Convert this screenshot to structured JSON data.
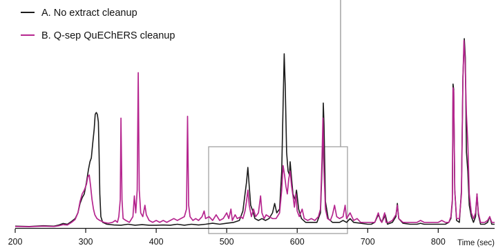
{
  "chart_data": {
    "type": "line",
    "title": "",
    "xlabel": "Time (sec)",
    "ylabel": "",
    "xlim": [
      200,
      880
    ],
    "ylim": [
      0,
      100
    ],
    "x_ticks": [
      "200",
      "300",
      "400",
      "500",
      "600",
      "700",
      "800"
    ],
    "grid": false,
    "legend_position": "top-left",
    "series": [
      {
        "name": "A. No extract cleanup",
        "color": "#1a1a1a",
        "points": [
          [
            200,
            1
          ],
          [
            220,
            0.8
          ],
          [
            240,
            1.2
          ],
          [
            255,
            1
          ],
          [
            262,
            1.6
          ],
          [
            268,
            2.4
          ],
          [
            274,
            2
          ],
          [
            280,
            3.5
          ],
          [
            285,
            5
          ],
          [
            289,
            8
          ],
          [
            292,
            13
          ],
          [
            295,
            16
          ],
          [
            298,
            18
          ],
          [
            301,
            24
          ],
          [
            304,
            31
          ],
          [
            306,
            35
          ],
          [
            308,
            37
          ],
          [
            310,
            45
          ],
          [
            312,
            52
          ],
          [
            313.5,
            60
          ],
          [
            315,
            61
          ],
          [
            316.5,
            60
          ],
          [
            318,
            56
          ],
          [
            319,
            40
          ],
          [
            320,
            18
          ],
          [
            321.5,
            6
          ],
          [
            324,
            3
          ],
          [
            330,
            2
          ],
          [
            340,
            1.6
          ],
          [
            350,
            1.5
          ],
          [
            360,
            2
          ],
          [
            370,
            1.5
          ],
          [
            380,
            1.8
          ],
          [
            390,
            1.5
          ],
          [
            400,
            1.5
          ],
          [
            410,
            1.6
          ],
          [
            420,
            1.5
          ],
          [
            430,
            2
          ],
          [
            440,
            1.5
          ],
          [
            450,
            2
          ],
          [
            460,
            1.6
          ],
          [
            470,
            2
          ],
          [
            480,
            2.5
          ],
          [
            490,
            2
          ],
          [
            500,
            2.5
          ],
          [
            510,
            3
          ],
          [
            518,
            4
          ],
          [
            523,
            9
          ],
          [
            526,
            18
          ],
          [
            528,
            24
          ],
          [
            530,
            32
          ],
          [
            532,
            22
          ],
          [
            534,
            12
          ],
          [
            537,
            9
          ],
          [
            540,
            5
          ],
          [
            545,
            4
          ],
          [
            550,
            5
          ],
          [
            555,
            4
          ],
          [
            560,
            5
          ],
          [
            565,
            8
          ],
          [
            568,
            13
          ],
          [
            571,
            8
          ],
          [
            575,
            10
          ],
          [
            578,
            30
          ],
          [
            580,
            65
          ],
          [
            581.5,
            92
          ],
          [
            583,
            75
          ],
          [
            585,
            40
          ],
          [
            587,
            30
          ],
          [
            589,
            28
          ],
          [
            590,
            35
          ],
          [
            592,
            26
          ],
          [
            594,
            18
          ],
          [
            597,
            15
          ],
          [
            599,
            20
          ],
          [
            602,
            10
          ],
          [
            606,
            5
          ],
          [
            612,
            3
          ],
          [
            620,
            3
          ],
          [
            628,
            3
          ],
          [
            633,
            8
          ],
          [
            636,
            40
          ],
          [
            637,
            66
          ],
          [
            638,
            55
          ],
          [
            640,
            14
          ],
          [
            644,
            5
          ],
          [
            650,
            3
          ],
          [
            660,
            3
          ],
          [
            665,
            4
          ],
          [
            670,
            3
          ],
          [
            675,
            5
          ],
          [
            680,
            3
          ],
          [
            690,
            2.5
          ],
          [
            700,
            2
          ],
          [
            705,
            2
          ],
          [
            710,
            3
          ],
          [
            715,
            7
          ],
          [
            720,
            3
          ],
          [
            725,
            7
          ],
          [
            728,
            2
          ],
          [
            735,
            3
          ],
          [
            740,
            6
          ],
          [
            742,
            13
          ],
          [
            744,
            5
          ],
          [
            750,
            2.5
          ],
          [
            760,
            2
          ],
          [
            770,
            2
          ],
          [
            775,
            2.5
          ],
          [
            780,
            2
          ],
          [
            790,
            2
          ],
          [
            800,
            2
          ],
          [
            810,
            2
          ],
          [
            815,
            3
          ],
          [
            818,
            5
          ],
          [
            820,
            14
          ],
          [
            821,
            76
          ],
          [
            822,
            73
          ],
          [
            823.5,
            20
          ],
          [
            826,
            4
          ],
          [
            830,
            3
          ],
          [
            833,
            20
          ],
          [
            835,
            80
          ],
          [
            837,
            100
          ],
          [
            838.5,
            90
          ],
          [
            840,
            40
          ],
          [
            842,
            30
          ],
          [
            844,
            12
          ],
          [
            847,
            6
          ],
          [
            850,
            3
          ],
          [
            853,
            6
          ],
          [
            855,
            18
          ],
          [
            857,
            7
          ],
          [
            860,
            2
          ],
          [
            866,
            2
          ],
          [
            870,
            3
          ],
          [
            873,
            6
          ],
          [
            876,
            2
          ],
          [
            880,
            2
          ]
        ]
      },
      {
        "name": "B. Q-sep QuEChERS cleanup",
        "color": "#b5258e",
        "points": [
          [
            200,
            0.8
          ],
          [
            220,
            0.7
          ],
          [
            240,
            1
          ],
          [
            255,
            0.8
          ],
          [
            262,
            1.2
          ],
          [
            268,
            1.8
          ],
          [
            274,
            1.6
          ],
          [
            280,
            3
          ],
          [
            285,
            4.5
          ],
          [
            289,
            8
          ],
          [
            292,
            14
          ],
          [
            295,
            18
          ],
          [
            298,
            20
          ],
          [
            301,
            23
          ],
          [
            303,
            27
          ],
          [
            305,
            28
          ],
          [
            307,
            22
          ],
          [
            309,
            15
          ],
          [
            311,
            10
          ],
          [
            313,
            7
          ],
          [
            316,
            5
          ],
          [
            320,
            4
          ],
          [
            326,
            3
          ],
          [
            332,
            2.5
          ],
          [
            338,
            3
          ],
          [
            342,
            4
          ],
          [
            345,
            3
          ],
          [
            347,
            6
          ],
          [
            349,
            15
          ],
          [
            350,
            58
          ],
          [
            351.5,
            15
          ],
          [
            353,
            5
          ],
          [
            357,
            4
          ],
          [
            362,
            3
          ],
          [
            367,
            6
          ],
          [
            369,
            17
          ],
          [
            371,
            8
          ],
          [
            373,
            20
          ],
          [
            374.5,
            82
          ],
          [
            376,
            20
          ],
          [
            378,
            8
          ],
          [
            381,
            6
          ],
          [
            384,
            12
          ],
          [
            386,
            7
          ],
          [
            390,
            4
          ],
          [
            395,
            3
          ],
          [
            400,
            4
          ],
          [
            405,
            3
          ],
          [
            410,
            4
          ],
          [
            415,
            3
          ],
          [
            420,
            4
          ],
          [
            425,
            5
          ],
          [
            430,
            4
          ],
          [
            435,
            5
          ],
          [
            440,
            6
          ],
          [
            443,
            10
          ],
          [
            444.5,
            59
          ],
          [
            446,
            12
          ],
          [
            448,
            6
          ],
          [
            452,
            4
          ],
          [
            456,
            5
          ],
          [
            460,
            4
          ],
          [
            465,
            6
          ],
          [
            468,
            9
          ],
          [
            470,
            5
          ],
          [
            475,
            6
          ],
          [
            480,
            4
          ],
          [
            485,
            7
          ],
          [
            490,
            4
          ],
          [
            495,
            5
          ],
          [
            500,
            8
          ],
          [
            503,
            5
          ],
          [
            506,
            10
          ],
          [
            508,
            4
          ],
          [
            512,
            7
          ],
          [
            515,
            5
          ],
          [
            520,
            6
          ],
          [
            523,
            5
          ],
          [
            526,
            9
          ],
          [
            528,
            14
          ],
          [
            530,
            20
          ],
          [
            532,
            12
          ],
          [
            535,
            6
          ],
          [
            538,
            10
          ],
          [
            541,
            6
          ],
          [
            545,
            8
          ],
          [
            548,
            17
          ],
          [
            550,
            8
          ],
          [
            553,
            5
          ],
          [
            556,
            7
          ],
          [
            560,
            6
          ],
          [
            565,
            5
          ],
          [
            570,
            5
          ],
          [
            575,
            8
          ],
          [
            578,
            20
          ],
          [
            580,
            33
          ],
          [
            582,
            28
          ],
          [
            584,
            22
          ],
          [
            586,
            18
          ],
          [
            588,
            26
          ],
          [
            590,
            30
          ],
          [
            592,
            22
          ],
          [
            594,
            17
          ],
          [
            596,
            11
          ],
          [
            598,
            18
          ],
          [
            600,
            9
          ],
          [
            603,
            6
          ],
          [
            607,
            10
          ],
          [
            610,
            5
          ],
          [
            615,
            4
          ],
          [
            620,
            5
          ],
          [
            625,
            4
          ],
          [
            630,
            6
          ],
          [
            633,
            10
          ],
          [
            635,
            35
          ],
          [
            636.5,
            58
          ],
          [
            638,
            30
          ],
          [
            640,
            10
          ],
          [
            643,
            5
          ],
          [
            647,
            4
          ],
          [
            650,
            7
          ],
          [
            653,
            12
          ],
          [
            656,
            6
          ],
          [
            660,
            5
          ],
          [
            665,
            6
          ],
          [
            668,
            12
          ],
          [
            670,
            5
          ],
          [
            675,
            8
          ],
          [
            680,
            4
          ],
          [
            685,
            5
          ],
          [
            690,
            3
          ],
          [
            700,
            3
          ],
          [
            710,
            3
          ],
          [
            715,
            8
          ],
          [
            718,
            4
          ],
          [
            720,
            3
          ],
          [
            724,
            8
          ],
          [
            726,
            3
          ],
          [
            730,
            3
          ],
          [
            735,
            4
          ],
          [
            740,
            7
          ],
          [
            742,
            12
          ],
          [
            744,
            5
          ],
          [
            750,
            3
          ],
          [
            760,
            3
          ],
          [
            770,
            3
          ],
          [
            775,
            4
          ],
          [
            780,
            3
          ],
          [
            790,
            3
          ],
          [
            800,
            3
          ],
          [
            805,
            4
          ],
          [
            810,
            3
          ],
          [
            815,
            3
          ],
          [
            818,
            6
          ],
          [
            820,
            15
          ],
          [
            821,
            74
          ],
          [
            822,
            72
          ],
          [
            823.5,
            20
          ],
          [
            826,
            5
          ],
          [
            830,
            5
          ],
          [
            833,
            18
          ],
          [
            835,
            78
          ],
          [
            836.5,
            99
          ],
          [
            838,
            90
          ],
          [
            840,
            60
          ],
          [
            842,
            45
          ],
          [
            844,
            18
          ],
          [
            847,
            8
          ],
          [
            850,
            5
          ],
          [
            853,
            8
          ],
          [
            855,
            18
          ],
          [
            857,
            8
          ],
          [
            860,
            3
          ],
          [
            866,
            3
          ],
          [
            870,
            4
          ],
          [
            873,
            6
          ],
          [
            876,
            3
          ],
          [
            880,
            3
          ]
        ]
      }
    ]
  }
}
